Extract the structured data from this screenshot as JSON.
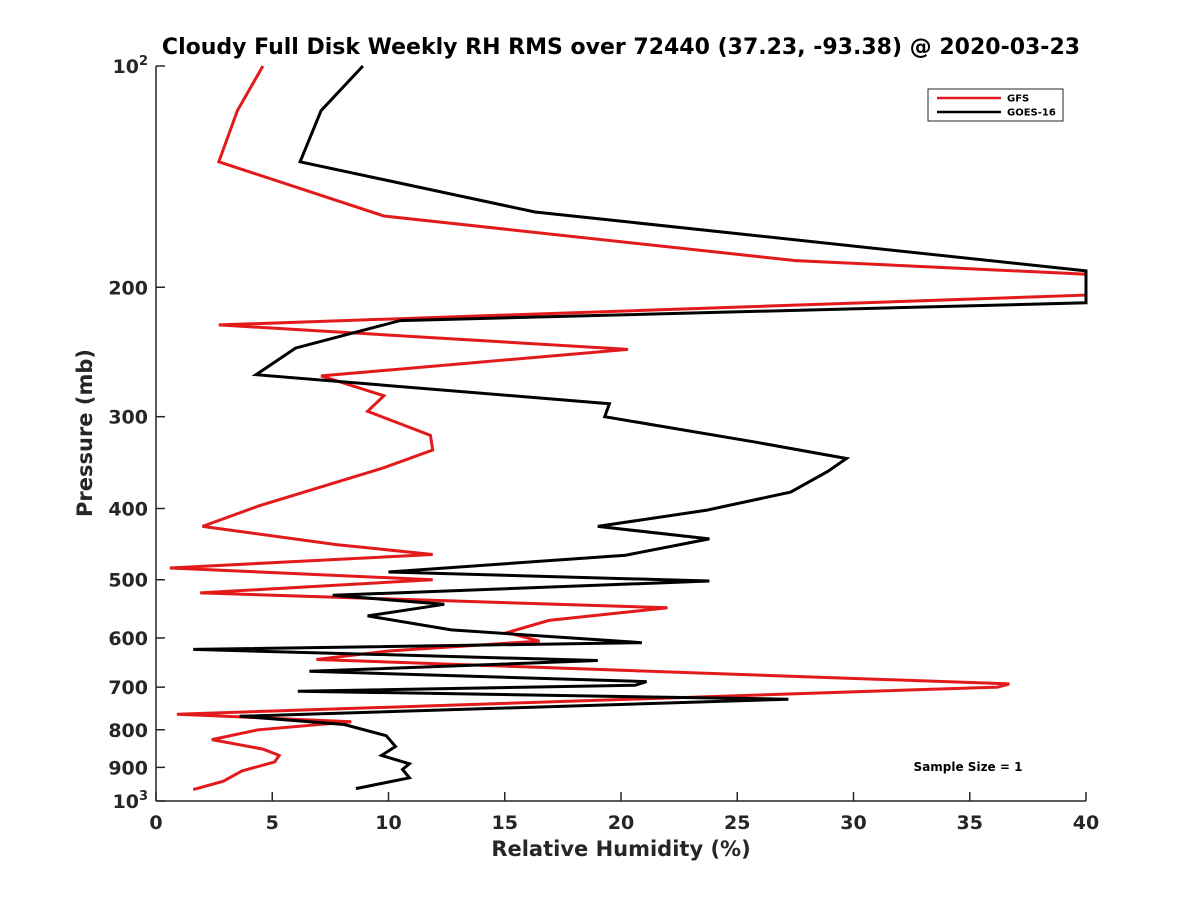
{
  "chart_data": {
    "type": "line",
    "title": "Cloudy Full Disk Weekly RH RMS over 72440 (37.23, -93.38) @ 2020-03-23",
    "xlabel": "Relative Humidity (%)",
    "ylabel": "Pressure (mb)",
    "xlim": [
      0,
      40
    ],
    "ylim": [
      100,
      1000
    ],
    "y_scale": "log",
    "y_reversed": true,
    "grid": false,
    "legend_position": "top-right",
    "x_ticks": [
      "0",
      "5",
      "10",
      "15",
      "20",
      "25",
      "30",
      "35",
      "40"
    ],
    "y_ticks": [
      {
        "value": 100,
        "base": "10",
        "exp": "2"
      },
      {
        "value": 200,
        "label": "200"
      },
      {
        "value": 300,
        "label": "300"
      },
      {
        "value": 400,
        "label": "400"
      },
      {
        "value": 500,
        "label": "500"
      },
      {
        "value": 600,
        "label": "600"
      },
      {
        "value": 700,
        "label": "700"
      },
      {
        "value": 800,
        "label": "800"
      },
      {
        "value": 900,
        "label": "900"
      },
      {
        "value": 1000,
        "base": "10",
        "exp": "3"
      }
    ],
    "series": [
      {
        "name": "GFS",
        "color": "#e31a1c",
        "points": [
          [
            4.6,
            100
          ],
          [
            3.5,
            115
          ],
          [
            2.7,
            135
          ],
          [
            9.8,
            160
          ],
          [
            27.5,
            184
          ],
          [
            40.0,
            192
          ],
          [
            40.0,
            205
          ],
          [
            2.7,
            225
          ],
          [
            20.3,
            243
          ],
          [
            7.1,
            264
          ],
          [
            9.8,
            281
          ],
          [
            9.1,
            295
          ],
          [
            11.8,
            318
          ],
          [
            11.9,
            333
          ],
          [
            9.8,
            352
          ],
          [
            4.4,
            397
          ],
          [
            2.0,
            423
          ],
          [
            7.8,
            448
          ],
          [
            11.9,
            462
          ],
          [
            0.6,
            482
          ],
          [
            11.9,
            500
          ],
          [
            1.9,
            521
          ],
          [
            22.0,
            546
          ],
          [
            16.9,
            568
          ],
          [
            15.1,
            590
          ],
          [
            16.5,
            606
          ],
          [
            10.0,
            625
          ],
          [
            6.9,
            642
          ],
          [
            36.7,
            693
          ],
          [
            36.2,
            700
          ],
          [
            0.9,
            762
          ],
          [
            8.4,
            780
          ],
          [
            4.4,
            800
          ],
          [
            2.4,
            825
          ],
          [
            4.6,
            850
          ],
          [
            5.3,
            867
          ],
          [
            5.1,
            885
          ],
          [
            3.7,
            910
          ],
          [
            2.9,
            940
          ],
          [
            1.6,
            965
          ]
        ]
      },
      {
        "name": "GOES-16",
        "color": "#000000",
        "points": [
          [
            8.9,
            100
          ],
          [
            7.1,
            115
          ],
          [
            6.2,
            135
          ],
          [
            16.3,
            158
          ],
          [
            40.0,
            190
          ],
          [
            40.0,
            210
          ],
          [
            10.5,
            222
          ],
          [
            6.0,
            242
          ],
          [
            4.3,
            263
          ],
          [
            19.5,
            288
          ],
          [
            19.3,
            300
          ],
          [
            25.8,
            325
          ],
          [
            29.7,
            342
          ],
          [
            28.9,
            356
          ],
          [
            27.3,
            380
          ],
          [
            23.7,
            402
          ],
          [
            19.0,
            423
          ],
          [
            23.8,
            440
          ],
          [
            20.2,
            463
          ],
          [
            10.0,
            488
          ],
          [
            23.8,
            502
          ],
          [
            7.6,
            525
          ],
          [
            12.4,
            540
          ],
          [
            9.1,
            560
          ],
          [
            12.7,
            585
          ],
          [
            20.9,
            609
          ],
          [
            1.6,
            622
          ],
          [
            19.0,
            644
          ],
          [
            6.6,
            666
          ],
          [
            21.1,
            688
          ],
          [
            20.6,
            696
          ],
          [
            6.1,
            709
          ],
          [
            27.2,
            727
          ],
          [
            3.6,
            767
          ],
          [
            8.1,
            787
          ],
          [
            9.9,
            815
          ],
          [
            10.3,
            843
          ],
          [
            9.7,
            867
          ],
          [
            10.9,
            890
          ],
          [
            10.6,
            906
          ],
          [
            10.9,
            930
          ],
          [
            8.6,
            962
          ]
        ]
      }
    ],
    "annotation": "Sample Size = 1"
  }
}
